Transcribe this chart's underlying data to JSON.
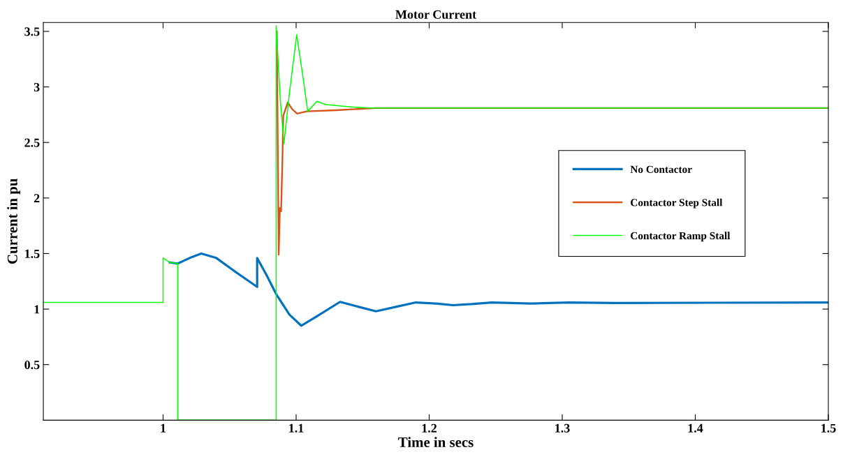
{
  "chart_data": {
    "type": "line",
    "title": "Motor Current",
    "xlabel": "Time in secs",
    "ylabel": "Current in pu",
    "xlim": [
      0.91,
      1.5
    ],
    "ylim": [
      0,
      3.58
    ],
    "xticks": [
      1,
      1.1,
      1.2,
      1.3,
      1.4,
      1.5
    ],
    "yticks": [
      0.5,
      1,
      1.5,
      2,
      2.5,
      3,
      3.5
    ],
    "grid": false,
    "legend": "right",
    "line_style": "solid",
    "marker": "none",
    "series": [
      {
        "name": "No Contactor",
        "color": "#0072bd",
        "x": [
          1.005,
          1.011,
          1.02,
          1.0287,
          1.04,
          1.055,
          1.0707,
          1.0707,
          1.078,
          1.085,
          1.095,
          1.1039,
          1.115,
          1.133,
          1.147,
          1.16,
          1.175,
          1.19,
          1.205,
          1.218,
          1.232,
          1.247,
          1.262,
          1.276,
          1.29,
          1.305,
          1.34,
          1.5
        ],
        "values": [
          1.42,
          1.41,
          1.46,
          1.5,
          1.46,
          1.33,
          1.2,
          1.46,
          1.3,
          1.135,
          0.95,
          0.85,
          0.93,
          1.065,
          1.02,
          0.98,
          1.02,
          1.06,
          1.05,
          1.035,
          1.045,
          1.06,
          1.055,
          1.05,
          1.055,
          1.06,
          1.055,
          1.06
        ]
      },
      {
        "name": "Contactor Step Stall",
        "color": "#d95319",
        "x": [
          1.0855,
          1.0869,
          1.0878,
          1.0887,
          1.0898,
          1.0903,
          1.0937,
          1.097,
          1.1007,
          1.1082,
          1.13,
          1.16,
          1.5
        ],
        "values": [
          3.5,
          1.49,
          1.91,
          1.88,
          2.4,
          2.74,
          2.86,
          2.8,
          2.76,
          2.78,
          2.79,
          2.81,
          2.81
        ]
      },
      {
        "name": "Contactor Ramp Stall",
        "color": "#00ff00",
        "x": [
          0.91,
          1.0,
          1.0,
          1.005,
          1.011,
          1.011,
          1.085,
          1.085,
          1.088,
          1.0908,
          1.095,
          1.1004,
          1.105,
          1.1087,
          1.1156,
          1.1224,
          1.141,
          1.155,
          1.5
        ],
        "values": [
          1.06,
          1.06,
          1.46,
          1.42,
          1.41,
          0,
          0,
          3.55,
          2.9,
          2.49,
          2.95,
          3.47,
          3.1,
          2.78,
          2.87,
          2.84,
          2.82,
          2.81,
          2.81
        ]
      }
    ]
  }
}
